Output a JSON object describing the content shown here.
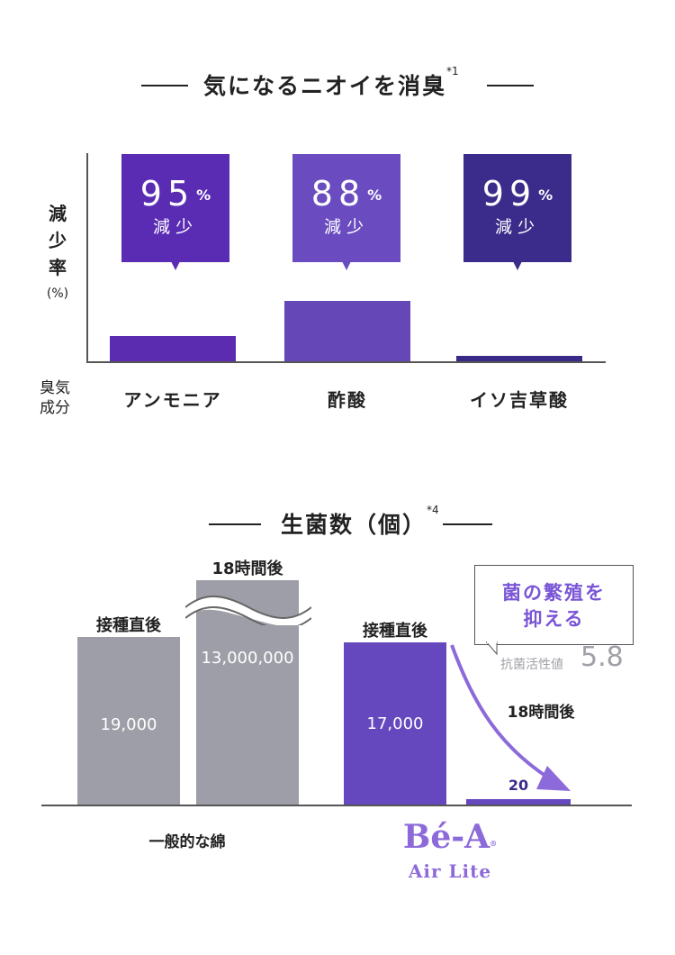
{
  "chart_data": [
    {
      "type": "bar",
      "title": "気になるニオイを消臭",
      "title_note": "*1",
      "ylabel_lines": [
        "減",
        "少",
        "率"
      ],
      "yunit": "(%)",
      "xlabel_lines": [
        "臭気",
        "成分"
      ],
      "categories": [
        "アンモニア",
        "酢酸",
        "イソ吉草酸"
      ],
      "values": [
        95,
        88,
        99
      ],
      "value_suffix": "%",
      "value_caption": "減少",
      "colors": [
        "#5b2bb0",
        "#6547b8",
        "#3a2a87"
      ],
      "callout_colors": [
        "#5a2cb4",
        "#6a4cc0",
        "#3b2b8a"
      ]
    },
    {
      "type": "bar",
      "title": "生菌数（個）",
      "title_note": "*4",
      "groups": [
        {
          "name": "一般的な綿",
          "bars": [
            {
              "label": "接種直後",
              "value": 19000,
              "value_text": "19,000"
            },
            {
              "label": "18時間後",
              "value": 13000000,
              "value_text": "13,000,000",
              "axis_break": true
            }
          ]
        },
        {
          "name": "Bé-A Air Lite",
          "bars": [
            {
              "label": "接種直後",
              "value": 17000,
              "value_text": "17,000"
            },
            {
              "label": "18時間後",
              "value": 20,
              "value_text": "20"
            }
          ]
        }
      ],
      "colors": {
        "cotton": "#9e9ea8",
        "bea": "#6548be",
        "arrow": "#8c6ad9"
      },
      "callout": {
        "line1": "菌の繁殖を",
        "line2": "抑える",
        "sub_label": "抗菌活性値",
        "sub_value": "5.8"
      }
    }
  ],
  "brand": {
    "main": "Bé-A",
    "trademark": "®",
    "sub": "Air Lite"
  }
}
